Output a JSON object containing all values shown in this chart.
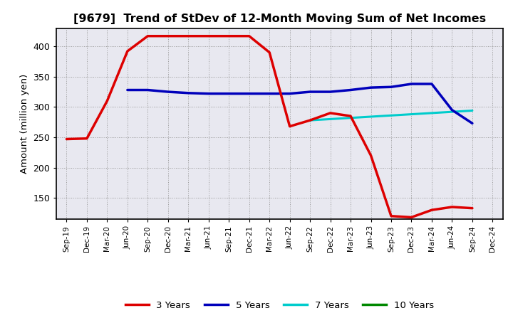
{
  "title": "[9679]  Trend of StDev of 12-Month Moving Sum of Net Incomes",
  "ylabel": "Amount (million yen)",
  "background_color": "#ffffff",
  "plot_bg_color": "#e8e8f0",
  "grid_color": "#aaaaaa",
  "x_labels": [
    "Sep-19",
    "Dec-19",
    "Mar-20",
    "Jun-20",
    "Sep-20",
    "Dec-20",
    "Mar-21",
    "Jun-21",
    "Sep-21",
    "Dec-21",
    "Mar-22",
    "Jun-22",
    "Sep-22",
    "Dec-22",
    "Mar-23",
    "Jun-23",
    "Sep-23",
    "Dec-23",
    "Mar-24",
    "Jun-24",
    "Sep-24",
    "Dec-24"
  ],
  "ylim": [
    115,
    430
  ],
  "yticks": [
    150,
    200,
    250,
    300,
    350,
    400
  ],
  "series": {
    "3 Years": {
      "color": "#dd0000",
      "linewidth": 2.5,
      "values": [
        247,
        248,
        310,
        392,
        417,
        417,
        417,
        417,
        417,
        417,
        390,
        268,
        278,
        290,
        285,
        220,
        120,
        118,
        130,
        135,
        133,
        null
      ]
    },
    "5 Years": {
      "color": "#0000bb",
      "linewidth": 2.5,
      "values": [
        null,
        null,
        null,
        328,
        328,
        325,
        323,
        322,
        322,
        322,
        322,
        322,
        325,
        325,
        328,
        332,
        333,
        338,
        338,
        295,
        273,
        null
      ]
    },
    "7 Years": {
      "color": "#00cccc",
      "linewidth": 2.2,
      "values": [
        null,
        null,
        null,
        null,
        null,
        null,
        null,
        null,
        null,
        null,
        null,
        null,
        278,
        280,
        282,
        284,
        286,
        288,
        290,
        292,
        294,
        null
      ]
    },
    "10 Years": {
      "color": "#008800",
      "linewidth": 2.2,
      "values": [
        null,
        null,
        null,
        null,
        null,
        null,
        null,
        null,
        null,
        null,
        null,
        null,
        null,
        null,
        null,
        null,
        null,
        null,
        null,
        null,
        null,
        null
      ]
    }
  },
  "legend": {
    "labels": [
      "3 Years",
      "5 Years",
      "7 Years",
      "10 Years"
    ],
    "colors": [
      "#dd0000",
      "#0000bb",
      "#00cccc",
      "#008800"
    ]
  }
}
